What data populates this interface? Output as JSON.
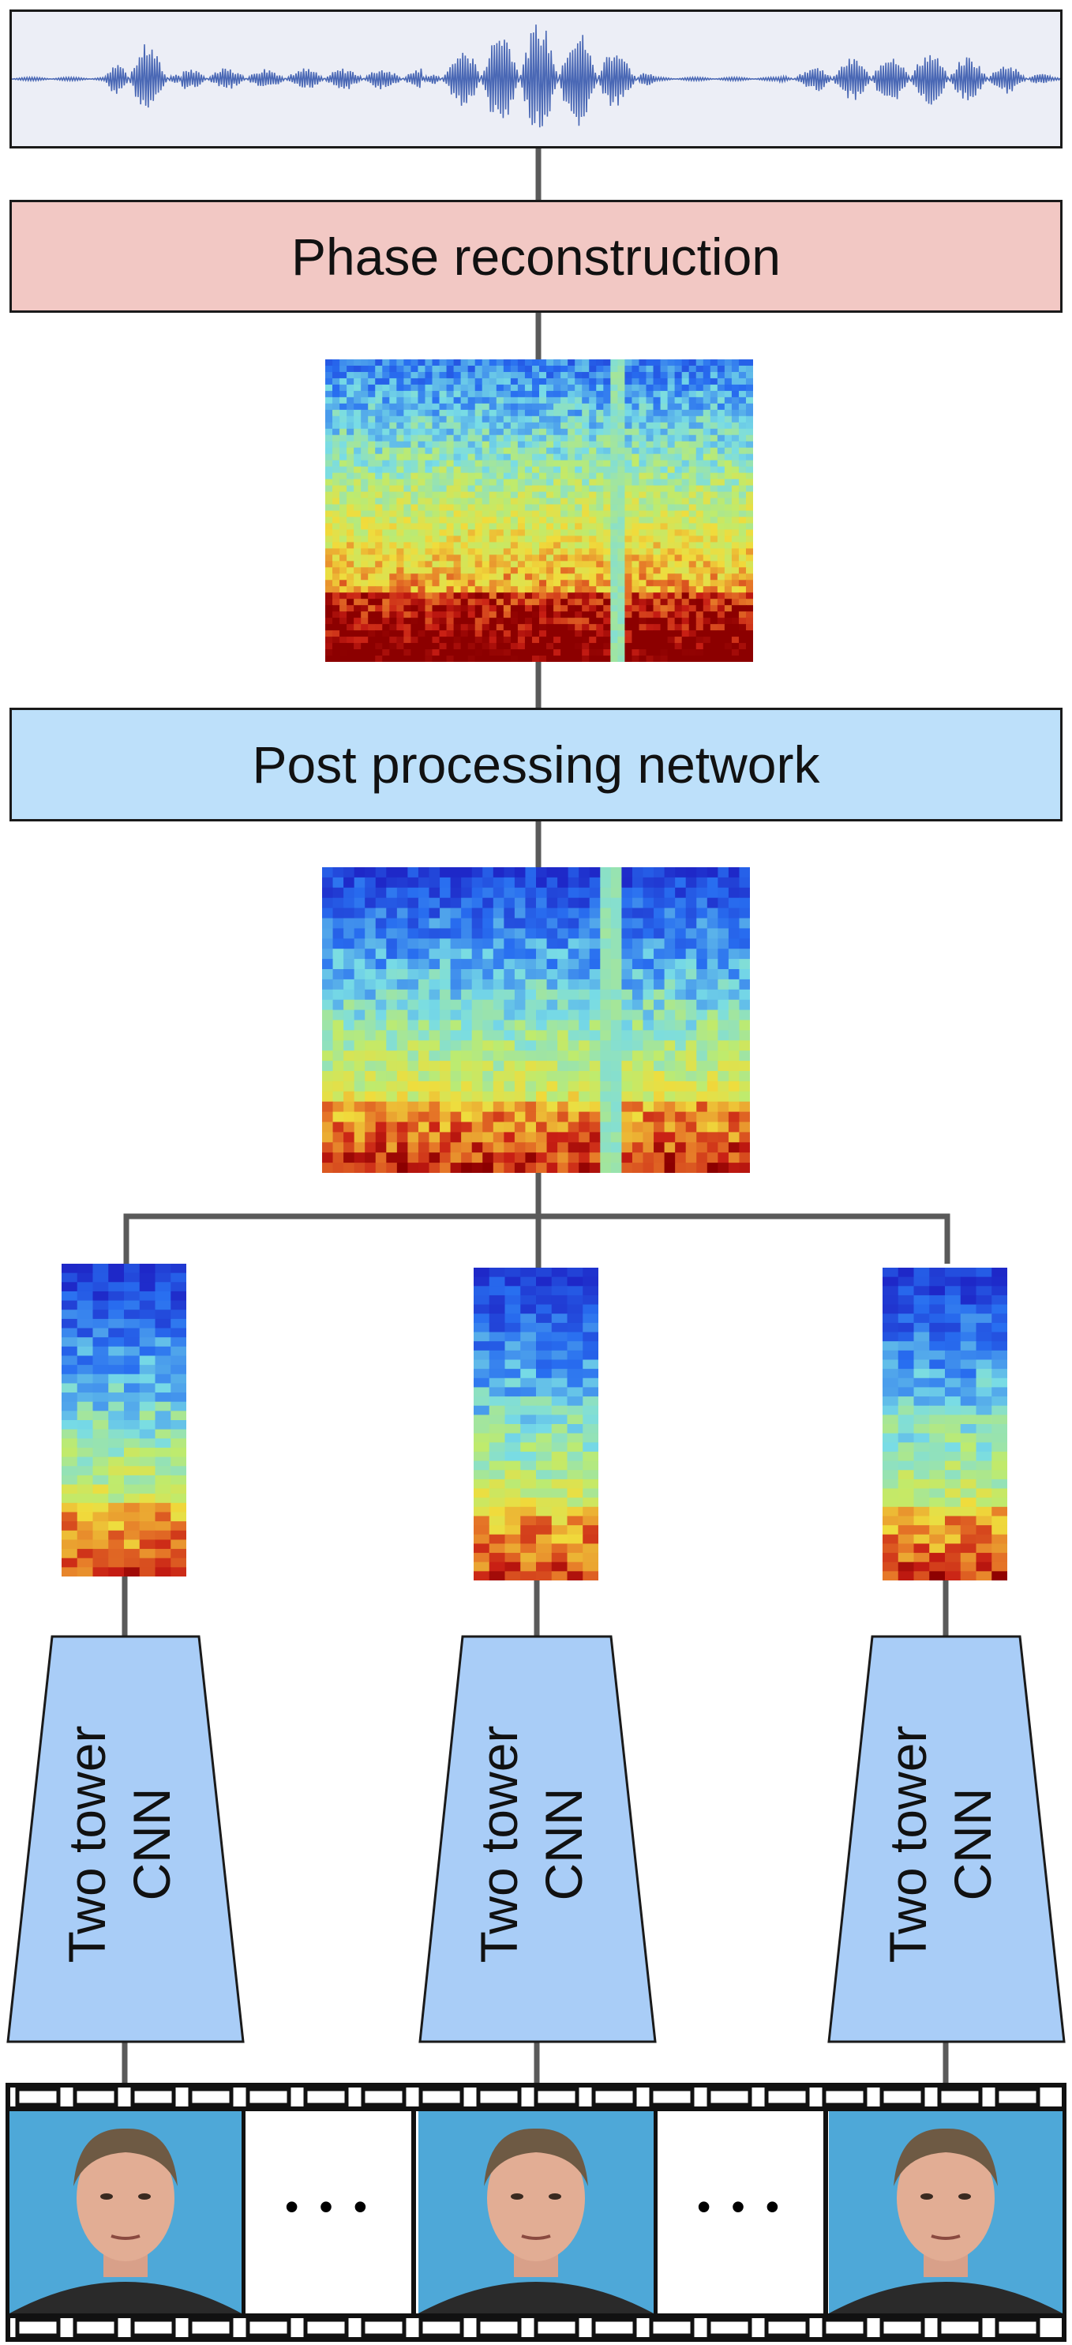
{
  "blocks": {
    "phase_label": "Phase reconstruction",
    "post_label": "Post processing network"
  },
  "towers": [
    {
      "line1": "Two tower",
      "line2": "CNN"
    },
    {
      "line1": "Two tower",
      "line2": "CNN"
    },
    {
      "line1": "Two tower",
      "line2": "CNN"
    }
  ],
  "filmstrip": {
    "ellipsis": "• • •"
  },
  "colors": {
    "waveform_bg": "#eceef6",
    "waveform_line": "#4a68b5",
    "phase_fill": "#f2c8c4",
    "post_fill": "#bde0fa",
    "tower_fill": "#a9cdf7",
    "connector": "#5a5a5a",
    "face_bg": "#4ea8d8"
  }
}
